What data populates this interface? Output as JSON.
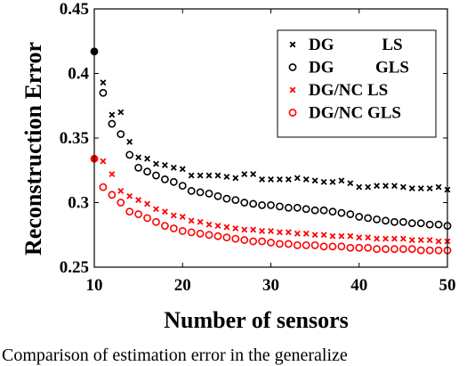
{
  "chart_data": {
    "type": "scatter",
    "title": "",
    "xlabel": "Number of sensors",
    "ylabel": "Reconstruction Error",
    "xlim": [
      10,
      50
    ],
    "ylim": [
      0.25,
      0.45
    ],
    "xticks": [
      "10",
      "20",
      "30",
      "40",
      "50"
    ],
    "yticks": [
      "0.25",
      "0.3",
      "0.35",
      "0.4",
      "0.45"
    ],
    "grid": false,
    "legend_position": "top-right",
    "x": [
      10,
      11,
      12,
      13,
      14,
      15,
      16,
      17,
      18,
      19,
      20,
      21,
      22,
      23,
      24,
      25,
      26,
      27,
      28,
      29,
      30,
      31,
      32,
      33,
      34,
      35,
      36,
      37,
      38,
      39,
      40,
      41,
      42,
      43,
      44,
      45,
      46,
      47,
      48,
      49,
      50
    ],
    "series": [
      {
        "name": "DG       LS",
        "marker": "x",
        "color": "#000000",
        "values": [
          0.417,
          0.393,
          0.368,
          0.37,
          0.347,
          0.335,
          0.334,
          0.33,
          0.329,
          0.327,
          0.326,
          0.321,
          0.321,
          0.321,
          0.321,
          0.32,
          0.319,
          0.322,
          0.322,
          0.318,
          0.318,
          0.318,
          0.318,
          0.319,
          0.318,
          0.317,
          0.316,
          0.316,
          0.317,
          0.315,
          0.312,
          0.312,
          0.313,
          0.313,
          0.313,
          0.312,
          0.311,
          0.311,
          0.311,
          0.312,
          0.31
        ]
      },
      {
        "name": "DG       GLS",
        "marker": "o",
        "color": "#000000",
        "values": [
          0.417,
          0.385,
          0.361,
          0.353,
          0.337,
          0.327,
          0.324,
          0.321,
          0.318,
          0.316,
          0.313,
          0.309,
          0.308,
          0.307,
          0.305,
          0.303,
          0.302,
          0.3,
          0.299,
          0.298,
          0.298,
          0.297,
          0.296,
          0.296,
          0.295,
          0.294,
          0.294,
          0.293,
          0.292,
          0.291,
          0.289,
          0.288,
          0.287,
          0.286,
          0.285,
          0.285,
          0.284,
          0.284,
          0.283,
          0.283,
          0.282
        ]
      },
      {
        "name": "DG/NC LS",
        "marker": "x",
        "color": "#ff0000",
        "values": [
          0.334,
          0.332,
          0.322,
          0.309,
          0.305,
          0.302,
          0.299,
          0.295,
          0.293,
          0.29,
          0.289,
          0.286,
          0.285,
          0.283,
          0.282,
          0.281,
          0.28,
          0.279,
          0.279,
          0.278,
          0.278,
          0.277,
          0.277,
          0.276,
          0.276,
          0.275,
          0.275,
          0.274,
          0.274,
          0.274,
          0.273,
          0.273,
          0.272,
          0.272,
          0.272,
          0.272,
          0.271,
          0.271,
          0.271,
          0.27,
          0.27
        ]
      },
      {
        "name": "DG/NC GLS",
        "marker": "o",
        "color": "#ff0000",
        "values": [
          0.334,
          0.312,
          0.306,
          0.3,
          0.293,
          0.291,
          0.288,
          0.285,
          0.282,
          0.28,
          0.278,
          0.277,
          0.276,
          0.275,
          0.274,
          0.273,
          0.272,
          0.271,
          0.27,
          0.27,
          0.269,
          0.268,
          0.268,
          0.267,
          0.267,
          0.267,
          0.266,
          0.266,
          0.266,
          0.265,
          0.265,
          0.265,
          0.264,
          0.264,
          0.264,
          0.264,
          0.264,
          0.263,
          0.263,
          0.263,
          0.263
        ]
      }
    ]
  },
  "caption": "Comparison of estimation error in the generalize"
}
